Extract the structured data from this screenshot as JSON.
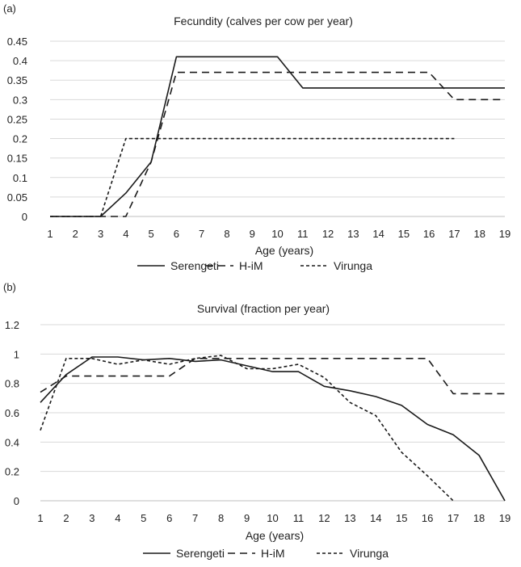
{
  "chart_data": [
    {
      "panel_label": "(a)",
      "type": "line",
      "title": "Fecundity (calves per cow per year)",
      "xlabel": "Age (years)",
      "ylabel": "",
      "x": [
        1,
        2,
        3,
        4,
        5,
        6,
        7,
        8,
        9,
        10,
        11,
        12,
        13,
        14,
        15,
        16,
        17,
        18,
        19
      ],
      "ylim": [
        0,
        0.45
      ],
      "yticks": [
        "0",
        "0.05",
        "0.1",
        "0.15",
        "0.2",
        "0.25",
        "0.3",
        "0.35",
        "0.4",
        "0.45"
      ],
      "grid": true,
      "legend_position": "bottom",
      "series": [
        {
          "name": "Serengeti",
          "style": "solid",
          "values": [
            0,
            0,
            0,
            0.06,
            0.14,
            0.41,
            0.41,
            0.41,
            0.41,
            0.41,
            0.33,
            0.33,
            0.33,
            0.33,
            0.33,
            0.33,
            0.33,
            0.33,
            0.33
          ]
        },
        {
          "name": "H-iM",
          "style": "dashed",
          "values": [
            0,
            0,
            0,
            0,
            0.14,
            0.37,
            0.37,
            0.37,
            0.37,
            0.37,
            0.37,
            0.37,
            0.37,
            0.37,
            0.37,
            0.37,
            0.3,
            0.3,
            0.3
          ]
        },
        {
          "name": "Virunga",
          "style": "dotted",
          "values": [
            0,
            0,
            0,
            0.2,
            0.2,
            0.2,
            0.2,
            0.2,
            0.2,
            0.2,
            0.2,
            0.2,
            0.2,
            0.2,
            0.2,
            0.2,
            0.2,
            null,
            null
          ]
        }
      ]
    },
    {
      "panel_label": "(b)",
      "type": "line",
      "title": "Survival (fraction per year)",
      "xlabel": "Age (years)",
      "ylabel": "",
      "x": [
        1,
        2,
        3,
        4,
        5,
        6,
        7,
        8,
        9,
        10,
        11,
        12,
        13,
        14,
        15,
        16,
        17,
        18,
        19
      ],
      "ylim": [
        0,
        1.2
      ],
      "yticks": [
        "0",
        "0.2",
        "0.4",
        "0.6",
        "0.8",
        "1",
        "1.2"
      ],
      "grid": true,
      "legend_position": "bottom",
      "series": [
        {
          "name": "Serengeti",
          "style": "solid",
          "values": [
            0.67,
            0.86,
            0.98,
            0.98,
            0.96,
            0.97,
            0.95,
            0.96,
            0.92,
            0.88,
            0.88,
            0.78,
            0.75,
            0.71,
            0.65,
            0.52,
            0.45,
            0.31,
            0
          ]
        },
        {
          "name": "H-iM",
          "style": "dashed",
          "values": [
            0.74,
            0.85,
            0.85,
            0.85,
            0.85,
            0.85,
            0.97,
            0.97,
            0.97,
            0.97,
            0.97,
            0.97,
            0.97,
            0.97,
            0.97,
            0.97,
            0.73,
            0.73,
            0.73
          ]
        },
        {
          "name": "Virunga",
          "style": "dotted",
          "values": [
            0.48,
            0.97,
            0.97,
            0.93,
            0.96,
            0.93,
            0.97,
            0.99,
            0.9,
            0.9,
            0.93,
            0.84,
            0.67,
            0.58,
            0.33,
            0.17,
            0,
            null,
            null
          ]
        }
      ]
    }
  ]
}
